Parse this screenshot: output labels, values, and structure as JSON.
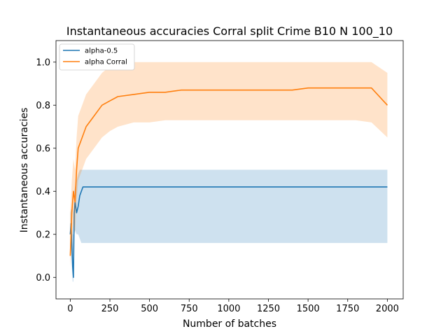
{
  "chart_data": {
    "type": "line",
    "title": "Instantaneous accuracies Corral split Crime B10 N 100_10",
    "xlabel": "Number of batches",
    "ylabel": "Instantaneous accuracies",
    "xlim": [
      -90,
      2100
    ],
    "ylim": [
      -0.1,
      1.1
    ],
    "xticks": [
      0,
      250,
      500,
      750,
      1000,
      1250,
      1500,
      1750,
      2000
    ],
    "xtick_labels": [
      "0",
      "250",
      "500",
      "750",
      "1000",
      "1250",
      "1500",
      "1750",
      "2000"
    ],
    "yticks": [
      0.0,
      0.2,
      0.4,
      0.6,
      0.8,
      1.0
    ],
    "ytick_labels": [
      "0.0",
      "0.2",
      "0.4",
      "0.6",
      "0.8",
      "1.0"
    ],
    "legend_position": "top-left",
    "grid": false,
    "series": [
      {
        "name": "alpha-0.5",
        "color": "#1f77b4",
        "shaded_band": true,
        "x": [
          0,
          5,
          10,
          15,
          20,
          25,
          30,
          40,
          50,
          60,
          70,
          80,
          90,
          100,
          150,
          200,
          250,
          300,
          400,
          500,
          600,
          700,
          800,
          900,
          1000,
          1100,
          1200,
          1300,
          1400,
          1500,
          1600,
          1700,
          1800,
          1900,
          2000
        ],
        "y": [
          0.2,
          0.25,
          0.15,
          0.05,
          0.0,
          0.3,
          0.35,
          0.3,
          0.33,
          0.38,
          0.4,
          0.42,
          0.42,
          0.42,
          0.42,
          0.42,
          0.42,
          0.42,
          0.42,
          0.42,
          0.42,
          0.42,
          0.42,
          0.42,
          0.42,
          0.42,
          0.42,
          0.42,
          0.42,
          0.42,
          0.42,
          0.42,
          0.42,
          0.42,
          0.42
        ],
        "low": [
          0.1,
          0.15,
          0.05,
          -0.02,
          -0.02,
          0.2,
          0.22,
          0.2,
          0.2,
          0.18,
          0.16,
          0.16,
          0.16,
          0.16,
          0.16,
          0.16,
          0.16,
          0.16,
          0.16,
          0.16,
          0.16,
          0.16,
          0.16,
          0.16,
          0.16,
          0.16,
          0.16,
          0.16,
          0.16,
          0.16,
          0.16,
          0.16,
          0.16,
          0.16,
          0.16
        ],
        "high": [
          0.3,
          0.32,
          0.3,
          0.2,
          0.2,
          0.4,
          0.42,
          0.45,
          0.48,
          0.5,
          0.5,
          0.5,
          0.5,
          0.5,
          0.5,
          0.5,
          0.5,
          0.5,
          0.5,
          0.5,
          0.5,
          0.5,
          0.5,
          0.5,
          0.5,
          0.5,
          0.5,
          0.5,
          0.5,
          0.5,
          0.5,
          0.5,
          0.5,
          0.5,
          0.5
        ]
      },
      {
        "name": "alpha Corral",
        "color": "#ff7f0e",
        "shaded_band": true,
        "x": [
          0,
          10,
          20,
          30,
          40,
          50,
          75,
          100,
          150,
          200,
          250,
          300,
          400,
          500,
          600,
          700,
          800,
          900,
          1000,
          1100,
          1200,
          1300,
          1400,
          1500,
          1600,
          1700,
          1800,
          1900,
          2000
        ],
        "y": [
          0.1,
          0.3,
          0.4,
          0.35,
          0.5,
          0.6,
          0.65,
          0.7,
          0.75,
          0.8,
          0.82,
          0.84,
          0.85,
          0.86,
          0.86,
          0.87,
          0.87,
          0.87,
          0.87,
          0.87,
          0.87,
          0.87,
          0.87,
          0.88,
          0.88,
          0.88,
          0.88,
          0.88,
          0.8
        ],
        "low": [
          0.05,
          0.15,
          0.25,
          0.2,
          0.35,
          0.45,
          0.5,
          0.55,
          0.6,
          0.65,
          0.68,
          0.7,
          0.72,
          0.72,
          0.73,
          0.73,
          0.73,
          0.73,
          0.73,
          0.73,
          0.73,
          0.73,
          0.73,
          0.73,
          0.73,
          0.73,
          0.73,
          0.72,
          0.65
        ],
        "high": [
          0.3,
          0.45,
          0.55,
          0.5,
          0.65,
          0.75,
          0.8,
          0.85,
          0.9,
          0.95,
          0.98,
          1.0,
          1.0,
          1.0,
          1.0,
          1.0,
          1.0,
          1.0,
          1.0,
          1.0,
          1.0,
          1.0,
          1.0,
          1.0,
          1.0,
          1.0,
          1.0,
          1.0,
          0.95
        ]
      }
    ]
  }
}
